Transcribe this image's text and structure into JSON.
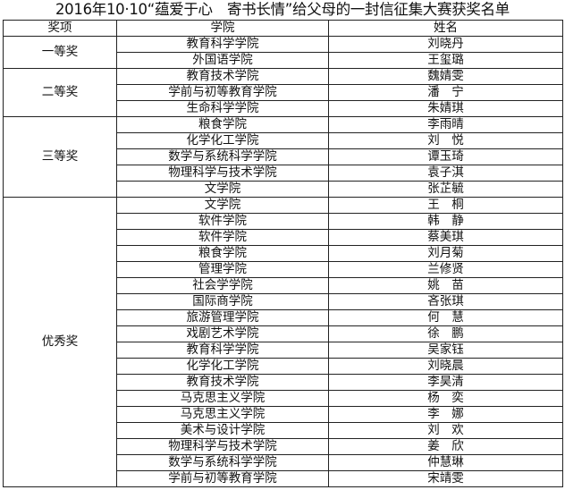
{
  "title": "2016年10·10“蕴爱于心　寄书长情”给父母的一封信征集大赛获奖名单",
  "headers": {
    "award": "奖项",
    "college": "学院",
    "name": "姓名"
  },
  "groups": [
    {
      "award": "一等奖",
      "rows": [
        {
          "college": "教育科学学院",
          "name": "刘晓丹"
        },
        {
          "college": "外国语学院",
          "name": "王玺璐"
        }
      ]
    },
    {
      "award": "二等奖",
      "rows": [
        {
          "college": "教育技术学院",
          "name": "魏婧雯"
        },
        {
          "college": "学前与初等教育学院",
          "name": "潘　宁"
        },
        {
          "college": "生命科学学院",
          "name": "朱婧琪"
        }
      ]
    },
    {
      "award": "三等奖",
      "rows": [
        {
          "college": "粮食学院",
          "name": "李雨晴"
        },
        {
          "college": "化学化工学院",
          "name": "刘　悦"
        },
        {
          "college": "数学与系统科学学院",
          "name": "谭玉琦"
        },
        {
          "college": "物理科学与技术学院",
          "name": "袁子淇"
        },
        {
          "college": "文学院",
          "name": "张芷毓"
        }
      ]
    },
    {
      "award": "优秀奖",
      "rows": [
        {
          "college": "文学院",
          "name": "王　桐"
        },
        {
          "college": "软件学院",
          "name": "韩　静"
        },
        {
          "college": "软件学院",
          "name": "蔡美琪"
        },
        {
          "college": "粮食学院",
          "name": "刘月菊"
        },
        {
          "college": "管理学院",
          "name": "兰修贤"
        },
        {
          "college": "社会学学院",
          "name": "姚　苗"
        },
        {
          "college": "国际商学院",
          "name": "吝张琪"
        },
        {
          "college": "旅游管理学院",
          "name": "何　慧"
        },
        {
          "college": "戏剧艺术学院",
          "name": "徐　鹏"
        },
        {
          "college": "教育科学学院",
          "name": "吴家钰"
        },
        {
          "college": "化学化工学院",
          "name": "刘晓晨"
        },
        {
          "college": "教育技术学院",
          "name": "李昊清"
        },
        {
          "college": "马克思主义学院",
          "name": "杨　奕"
        },
        {
          "college": "马克思主义学院",
          "name": "李　娜"
        },
        {
          "college": "美术与设计学院",
          "name": "刘　欢"
        },
        {
          "college": "物理科学与技术学院",
          "name": "姜　欣"
        },
        {
          "college": "数学与系统科学学院",
          "name": "仲慧琳"
        },
        {
          "college": "学前与初等教育学院",
          "name": "宋靖雯"
        }
      ]
    }
  ]
}
